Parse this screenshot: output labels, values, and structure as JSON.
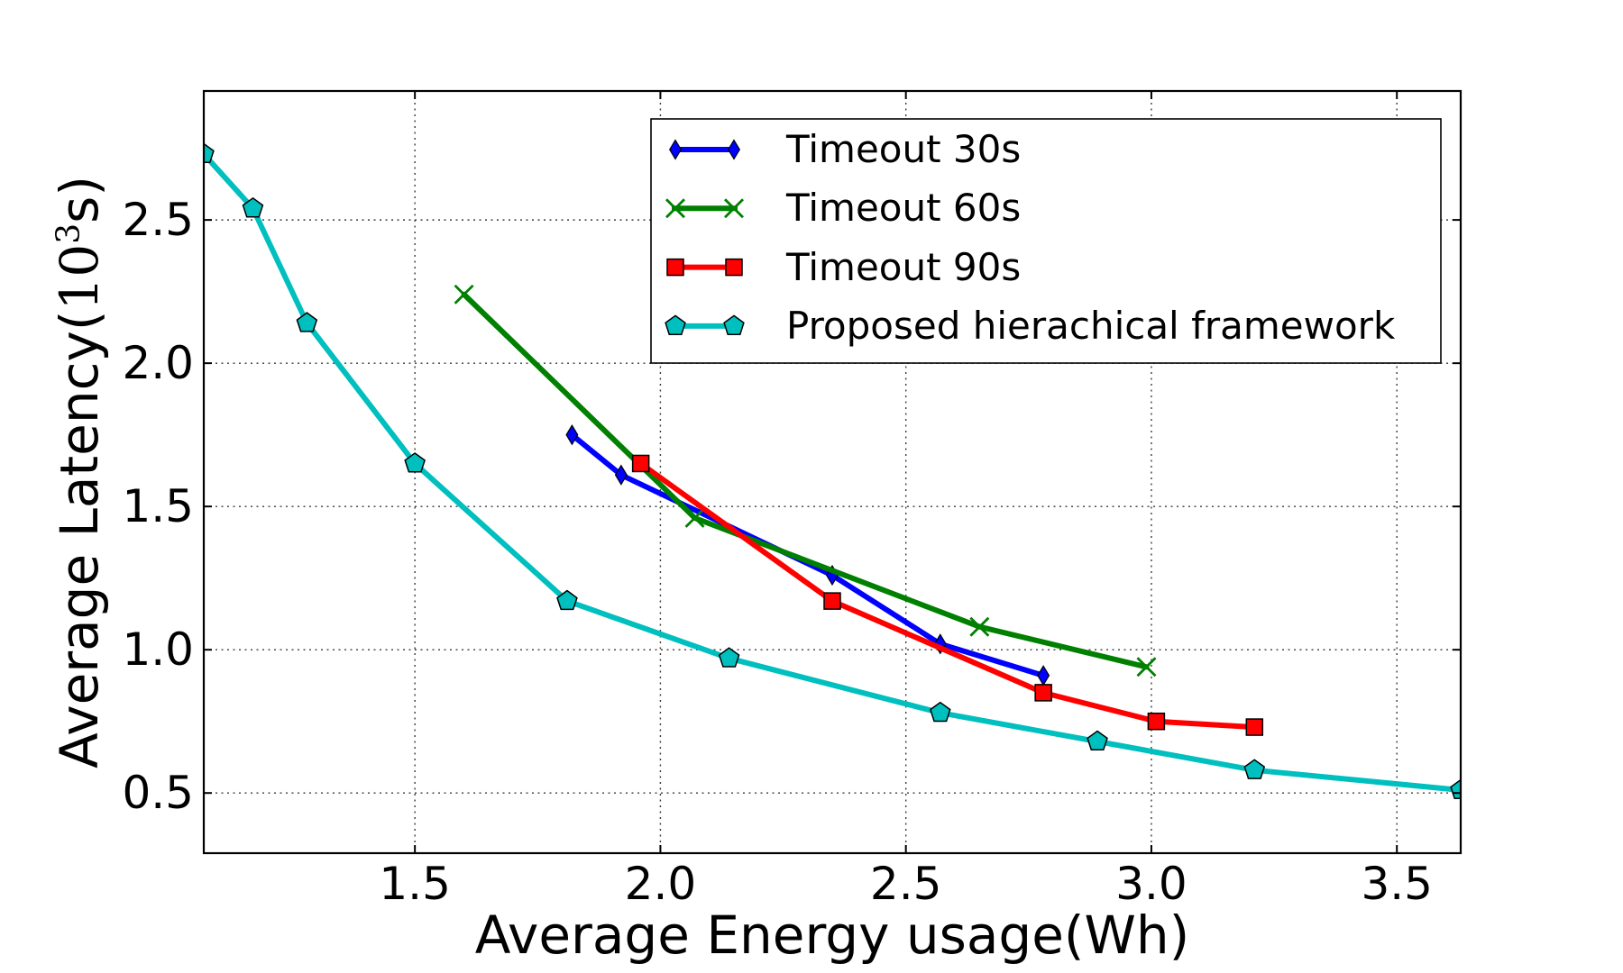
{
  "figure": {
    "background": "#ffffff",
    "frame_color": "#000000",
    "grid_color": "#3a3a3a"
  },
  "axes": {
    "xlabel": "Average Energy usage(Wh)",
    "ylabel_prefix": "Average Latency(",
    "ylabel_base": "10",
    "ylabel_sup": "3",
    "ylabel_suffix": "s)",
    "xticks": [
      "1.5",
      "2.0",
      "2.5",
      "3.0",
      "3.5"
    ],
    "yticks": [
      "0.5",
      "1.0",
      "1.5",
      "2.0",
      "2.5"
    ]
  },
  "chart_data": {
    "type": "line",
    "title": "",
    "xlabel": "Average Energy usage(Wh)",
    "ylabel": "Average Latency(10³s)",
    "xlim": [
      1.07,
      3.63
    ],
    "ylim": [
      0.29,
      2.95
    ],
    "xticks": [
      1.5,
      2.0,
      2.5,
      3.0,
      3.5
    ],
    "yticks": [
      0.5,
      1.0,
      1.5,
      2.0,
      2.5
    ],
    "grid": "on",
    "grid_style": "dotted",
    "legend_position": "upper right",
    "series": [
      {
        "name": "Timeout 30s",
        "color": "#0000ff",
        "marker": "thin-diamond",
        "x": [
          1.82,
          1.92,
          2.35,
          2.57,
          2.78
        ],
        "y": [
          1.75,
          1.61,
          1.26,
          1.02,
          0.91
        ]
      },
      {
        "name": "Timeout 60s",
        "color": "#008000",
        "marker": "x",
        "x": [
          1.6,
          2.07,
          2.65,
          2.99
        ],
        "y": [
          2.24,
          1.46,
          1.08,
          0.94
        ]
      },
      {
        "name": "Timeout 90s",
        "color": "#ff0000",
        "marker": "square",
        "x": [
          1.96,
          2.35,
          2.78,
          3.01,
          3.21
        ],
        "y": [
          1.65,
          1.17,
          0.85,
          0.75,
          0.73
        ]
      },
      {
        "name": "Proposed hierachical framework",
        "color": "#00bfbf",
        "marker": "pentagon",
        "x": [
          1.07,
          1.17,
          1.28,
          1.5,
          1.81,
          2.14,
          2.57,
          2.89,
          3.21,
          3.63
        ],
        "y": [
          2.73,
          2.54,
          2.14,
          1.65,
          1.17,
          0.97,
          0.78,
          0.68,
          0.58,
          0.51
        ]
      }
    ]
  }
}
